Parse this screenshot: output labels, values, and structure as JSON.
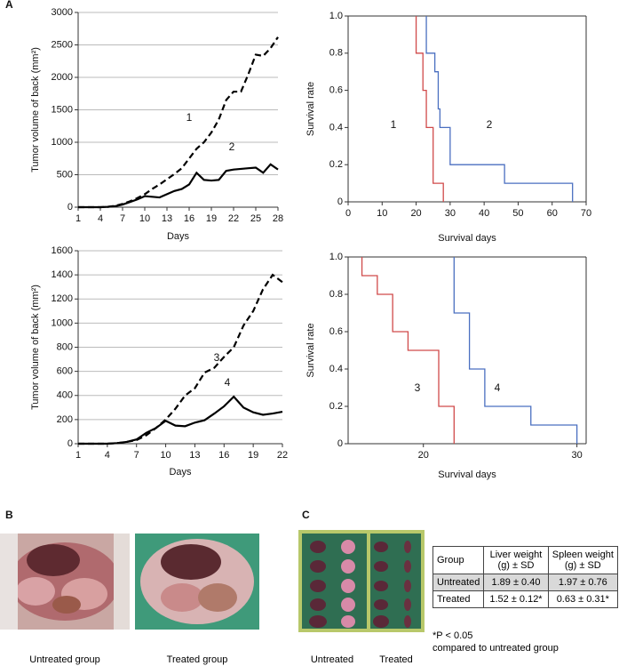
{
  "panel_labels": [
    "A",
    "B",
    "C"
  ],
  "chart_data": [
    {
      "type": "line",
      "xlabel": "Days",
      "ylabel": "Tumor volume of back (mm²)",
      "x": [
        1,
        2,
        3,
        4,
        5,
        6,
        7,
        8,
        9,
        10,
        11,
        12,
        13,
        14,
        15,
        16,
        17,
        18,
        19,
        20,
        21,
        22,
        23,
        24,
        25,
        26,
        27,
        28
      ],
      "xlim": [
        1,
        28
      ],
      "xticks": [
        1,
        4,
        7,
        10,
        13,
        16,
        19,
        22,
        25,
        28
      ],
      "ylim": [
        0,
        3000
      ],
      "yticks": [
        0,
        500,
        1000,
        1500,
        2000,
        2500,
        3000
      ],
      "grid": true,
      "series": [
        {
          "name": "1",
          "color": "#000000",
          "dash": true,
          "values": [
            0,
            0,
            0,
            0,
            5,
            20,
            50,
            90,
            140,
            200,
            280,
            350,
            430,
            510,
            600,
            750,
            900,
            1000,
            1150,
            1350,
            1650,
            1780,
            1780,
            2050,
            2350,
            2330,
            2450,
            2620
          ]
        },
        {
          "name": "2",
          "color": "#000000",
          "dash": false,
          "values": [
            0,
            0,
            0,
            0,
            5,
            15,
            40,
            80,
            120,
            170,
            160,
            150,
            200,
            250,
            280,
            350,
            530,
            420,
            410,
            420,
            560,
            580,
            590,
            600,
            610,
            530,
            660,
            580
          ]
        }
      ]
    },
    {
      "type": "step",
      "xlabel": "Survival days",
      "ylabel": "Survival rate",
      "xlim": [
        0,
        70
      ],
      "xticks": [
        0,
        10,
        20,
        30,
        40,
        50,
        60,
        70
      ],
      "ylim": [
        0,
        1
      ],
      "yticks": [
        0,
        0.2,
        0.4,
        0.6,
        0.8,
        {
          "value": 1,
          "label": "1.0"
        }
      ],
      "series": [
        {
          "name": "1",
          "color": "#d04a4a",
          "x": [
            20,
            20,
            22,
            23,
            25,
            28
          ],
          "values": [
            1,
            0.8,
            0.6,
            0.4,
            0.1,
            0
          ]
        },
        {
          "name": "2",
          "color": "#4a6fc0",
          "x": [
            23,
            23,
            25.5,
            26.5,
            27,
            30,
            46,
            66
          ],
          "values": [
            1,
            0.8,
            0.7,
            0.5,
            0.4,
            0.2,
            0.1,
            0
          ]
        }
      ]
    },
    {
      "type": "line",
      "xlabel": "Days",
      "ylabel": "Tumor volume of back (mm²)",
      "x": [
        1,
        2,
        3,
        4,
        5,
        6,
        7,
        8,
        9,
        10,
        11,
        12,
        13,
        14,
        15,
        16,
        17,
        18,
        19,
        20,
        21,
        22
      ],
      "xlim": [
        1,
        22
      ],
      "xticks": [
        1,
        4,
        7,
        10,
        13,
        16,
        19,
        22
      ],
      "ylim": [
        0,
        1600
      ],
      "yticks": [
        0,
        200,
        400,
        600,
        800,
        1000,
        1200,
        1400,
        1600
      ],
      "grid": true,
      "series": [
        {
          "name": "3",
          "color": "#000000",
          "dash": true,
          "values": [
            0,
            0,
            0,
            0,
            5,
            15,
            30,
            70,
            130,
            200,
            290,
            400,
            460,
            590,
            630,
            720,
            800,
            980,
            1100,
            1280,
            1400,
            1340
          ]
        },
        {
          "name": "4",
          "color": "#000000",
          "dash": false,
          "values": [
            0,
            0,
            0,
            0,
            5,
            15,
            35,
            90,
            130,
            190,
            150,
            145,
            175,
            195,
            250,
            310,
            390,
            300,
            260,
            240,
            250,
            265
          ]
        }
      ]
    },
    {
      "type": "step",
      "xlabel": "Survival days",
      "ylabel": "Survival rate",
      "xlim": [
        15.1,
        30.6
      ],
      "xticks": [
        20,
        30
      ],
      "ylim": [
        0,
        1
      ],
      "yticks": [
        0,
        0.2,
        0.4,
        0.6,
        0.8,
        {
          "value": 1,
          "label": "1.0"
        }
      ],
      "series": [
        {
          "name": "3",
          "color": "#d04a4a",
          "x": [
            16,
            16,
            17,
            18,
            19,
            21,
            22
          ],
          "values": [
            1,
            0.9,
            0.8,
            0.6,
            0.5,
            0.2,
            0
          ]
        },
        {
          "name": "4",
          "color": "#4a6fc0",
          "x": [
            22,
            22,
            23,
            24,
            27,
            30
          ],
          "values": [
            1,
            0.7,
            0.4,
            0.2,
            0.1,
            0
          ]
        }
      ]
    }
  ],
  "photos_b": {
    "captions": [
      "Untreated group",
      "Treated group"
    ]
  },
  "photos_c": {
    "captions": [
      "Untreated",
      "Treated"
    ]
  },
  "table": {
    "header": [
      "Group",
      "Liver weight (g) ± SD",
      "Spleen weight (g) ± SD"
    ],
    "rows": [
      [
        "Untreated",
        "1.89 ± 0.40",
        "1.97 ± 0.76"
      ],
      [
        "Treated",
        "1.52 ± 0.12*",
        "0.63 ± 0.31*"
      ]
    ]
  },
  "footnote": [
    "*P < 0.05",
    "compared to untreated group"
  ]
}
